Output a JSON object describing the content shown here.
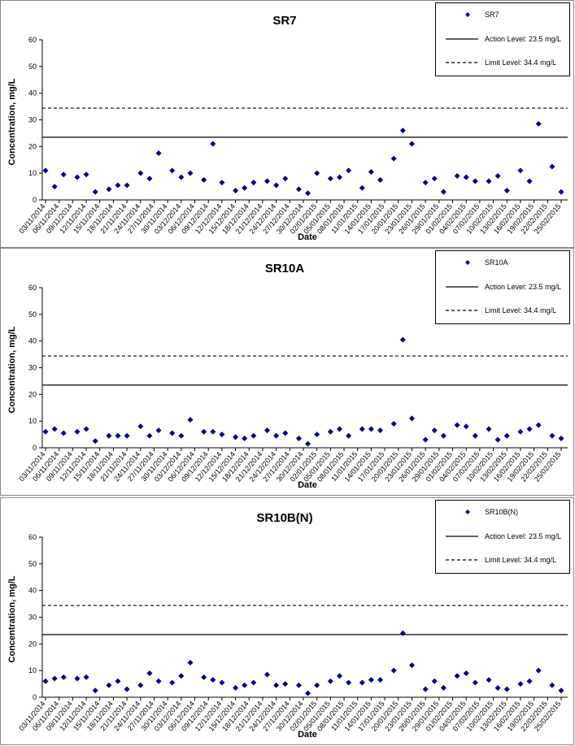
{
  "chart_data": [
    {
      "type": "scatter",
      "title": "SR7",
      "x_label": "Date",
      "y_label": "Concentration, mg/L",
      "series": [
        {
          "name": "SR7",
          "color": "#000080",
          "x": [
            "03/11/2014",
            "05/11/2014",
            "07/11/2014",
            "10/11/2014",
            "12/11/2014",
            "14/11/2014",
            "17/11/2014",
            "19/11/2014",
            "21/11/2014",
            "24/11/2014",
            "26/11/2014",
            "28/11/2014",
            "01/12/2014",
            "03/12/2014",
            "05/12/2014",
            "08/12/2014",
            "10/12/2014",
            "12/12/2014",
            "15/12/2014",
            "17/12/2014",
            "19/12/2014",
            "22/12/2014",
            "24/12/2014",
            "26/12/2014",
            "29/12/2014",
            "31/12/2014",
            "02/01/2015",
            "05/01/2015",
            "07/01/2015",
            "09/01/2015",
            "12/01/2015",
            "14/01/2015",
            "16/01/2015",
            "19/01/2015",
            "21/01/2015",
            "23/01/2015",
            "26/01/2015",
            "28/01/2015",
            "30/01/2015",
            "02/02/2015",
            "04/02/2015",
            "06/02/2015",
            "09/02/2015",
            "11/02/2015",
            "13/02/2015",
            "16/02/2015",
            "18/02/2015",
            "20/02/2015",
            "23/02/2015",
            "25/02/2015"
          ],
          "values": [
            11,
            5,
            9.5,
            8.5,
            9.5,
            3,
            4,
            5.5,
            5.5,
            10,
            8,
            17.5,
            11,
            8.5,
            10,
            7.5,
            21,
            6.5,
            3.5,
            4.5,
            6.5,
            7,
            5.5,
            8,
            4,
            2.5,
            10,
            8,
            8.5,
            11,
            4.5,
            10.5,
            7.5,
            15.5,
            26,
            21,
            6.5,
            8,
            3,
            9,
            8.5,
            7,
            7,
            9,
            3.5,
            11,
            7,
            28.5,
            12.5,
            3
          ]
        }
      ],
      "lines": [
        {
          "name": "Action Level: 23.5 mg/L",
          "value": 23.5,
          "style": "solid"
        },
        {
          "name": "Limit Level: 34.4 mg/L",
          "value": 34.4,
          "style": "dashed"
        }
      ],
      "xlim": [
        "03/11/2014",
        "25/02/2015"
      ],
      "xticks": [
        "03/11/2014",
        "06/11/2014",
        "09/11/2014",
        "12/11/2014",
        "15/11/2014",
        "18/11/2014",
        "21/11/2014",
        "24/11/2014",
        "27/11/2014",
        "30/11/2014",
        "03/12/2014",
        "06/12/2014",
        "09/12/2014",
        "12/12/2014",
        "15/12/2014",
        "18/12/2014",
        "21/12/2014",
        "24/12/2014",
        "27/12/2014",
        "30/12/2014",
        "02/01/2015",
        "05/01/2015",
        "08/01/2015",
        "11/01/2015",
        "14/01/2015",
        "17/01/2015",
        "20/01/2015",
        "23/01/2015",
        "26/01/2015",
        "29/01/2015",
        "01/02/2015",
        "04/02/2015",
        "07/02/2015",
        "10/02/2015",
        "13/02/2015",
        "16/02/2015",
        "19/02/2015",
        "22/02/2015",
        "25/02/2015"
      ],
      "ylim": [
        0,
        60
      ],
      "yticks": [
        0,
        10,
        20,
        30,
        40,
        50,
        60
      ]
    },
    {
      "type": "scatter",
      "title": "SR10A",
      "x_label": "Date",
      "y_label": "Concentration, mg/L",
      "series": [
        {
          "name": "SR10A",
          "color": "#000080",
          "x": [
            "03/11/2014",
            "05/11/2014",
            "07/11/2014",
            "10/11/2014",
            "12/11/2014",
            "14/11/2014",
            "17/11/2014",
            "19/11/2014",
            "21/11/2014",
            "24/11/2014",
            "26/11/2014",
            "28/11/2014",
            "01/12/2014",
            "03/12/2014",
            "05/12/2014",
            "08/12/2014",
            "10/12/2014",
            "12/12/2014",
            "15/12/2014",
            "17/12/2014",
            "19/12/2014",
            "22/12/2014",
            "24/12/2014",
            "26/12/2014",
            "29/12/2014",
            "31/12/2014",
            "02/01/2015",
            "05/01/2015",
            "07/01/2015",
            "09/01/2015",
            "12/01/2015",
            "14/01/2015",
            "16/01/2015",
            "19/01/2015",
            "21/01/2015",
            "23/01/2015",
            "26/01/2015",
            "28/01/2015",
            "30/01/2015",
            "02/02/2015",
            "04/02/2015",
            "06/02/2015",
            "09/02/2015",
            "11/02/2015",
            "13/02/2015",
            "16/02/2015",
            "18/02/2015",
            "20/02/2015",
            "23/02/2015",
            "25/02/2015"
          ],
          "values": [
            6,
            7,
            5.5,
            6,
            7,
            2.5,
            4.5,
            4.5,
            4.5,
            8,
            4.5,
            6.5,
            5.5,
            4.5,
            10.5,
            6,
            6,
            5,
            4,
            3.5,
            4.5,
            6.5,
            4.5,
            5.5,
            3.5,
            1.5,
            5,
            6,
            7,
            4.5,
            7,
            7,
            6.5,
            9,
            40.5,
            11,
            3,
            6.5,
            4.5,
            8.5,
            8,
            4.5,
            7,
            3,
            4.5,
            6,
            7,
            8.5,
            4.5,
            3.5
          ]
        }
      ],
      "lines": [
        {
          "name": "Action Level: 23.5 mg/L",
          "value": 23.5,
          "style": "solid"
        },
        {
          "name": "Limit Level: 34.4 mg/L",
          "value": 34.4,
          "style": "dashed"
        }
      ],
      "xlim": [
        "03/11/2014",
        "25/02/2015"
      ],
      "xticks": [
        "03/11/2014",
        "06/11/2014",
        "09/11/2014",
        "12/11/2014",
        "15/11/2014",
        "18/11/2014",
        "21/11/2014",
        "24/11/2014",
        "27/11/2014",
        "30/11/2014",
        "03/12/2014",
        "06/12/2014",
        "09/12/2014",
        "12/12/2014",
        "15/12/2014",
        "18/12/2014",
        "21/12/2014",
        "24/12/2014",
        "27/12/2014",
        "30/12/2014",
        "02/01/2015",
        "05/01/2015",
        "08/01/2015",
        "11/01/2015",
        "14/01/2015",
        "17/01/2015",
        "20/01/2015",
        "23/01/2015",
        "26/01/2015",
        "29/01/2015",
        "01/02/2015",
        "04/02/2015",
        "07/02/2015",
        "10/02/2015",
        "13/02/2015",
        "16/02/2015",
        "19/02/2015",
        "22/02/2015",
        "25/02/2015"
      ],
      "ylim": [
        0,
        60
      ],
      "yticks": [
        0,
        10,
        20,
        30,
        40,
        50,
        60
      ]
    },
    {
      "type": "scatter",
      "title": "SR10B(N)",
      "x_label": "Date",
      "y_label": "Concentration, mg/L",
      "series": [
        {
          "name": "SR10B(N)",
          "color": "#000080",
          "x": [
            "03/11/2014",
            "05/11/2014",
            "07/11/2014",
            "10/11/2014",
            "12/11/2014",
            "14/11/2014",
            "17/11/2014",
            "19/11/2014",
            "21/11/2014",
            "24/11/2014",
            "26/11/2014",
            "28/11/2014",
            "01/12/2014",
            "03/12/2014",
            "05/12/2014",
            "08/12/2014",
            "10/12/2014",
            "12/12/2014",
            "15/12/2014",
            "17/12/2014",
            "19/12/2014",
            "22/12/2014",
            "24/12/2014",
            "26/12/2014",
            "29/12/2014",
            "31/12/2014",
            "02/01/2015",
            "05/01/2015",
            "07/01/2015",
            "09/01/2015",
            "12/01/2015",
            "14/01/2015",
            "16/01/2015",
            "19/01/2015",
            "21/01/2015",
            "23/01/2015",
            "26/01/2015",
            "28/01/2015",
            "30/01/2015",
            "02/02/2015",
            "04/02/2015",
            "06/02/2015",
            "09/02/2015",
            "11/02/2015",
            "13/02/2015",
            "16/02/2015",
            "18/02/2015",
            "20/02/2015",
            "23/02/2015",
            "25/02/2015"
          ],
          "values": [
            6,
            7,
            7.5,
            7,
            7.5,
            2.5,
            4.5,
            6,
            3,
            4.5,
            9,
            6,
            5.5,
            8,
            13,
            7.5,
            6.5,
            5.5,
            3.5,
            4.5,
            5.5,
            8.5,
            4.5,
            5,
            4.5,
            1.5,
            4.5,
            6,
            8,
            5.5,
            5.5,
            6.5,
            6.5,
            10,
            24,
            12,
            3,
            6,
            3.5,
            8,
            9,
            5.5,
            6.5,
            3.5,
            3,
            5,
            6,
            10,
            4.5,
            2.5
          ]
        }
      ],
      "lines": [
        {
          "name": "Action Level: 23.5 mg/L",
          "value": 23.5,
          "style": "solid"
        },
        {
          "name": "Limit Level: 34.4 mg/L",
          "value": 34.4,
          "style": "dashed"
        }
      ],
      "xlim": [
        "03/11/2014",
        "25/02/2015"
      ],
      "xticks": [
        "03/11/2014",
        "06/11/2014",
        "09/11/2014",
        "12/11/2014",
        "15/11/2014",
        "18/11/2014",
        "21/11/2014",
        "24/11/2014",
        "27/11/2014",
        "30/11/2014",
        "03/12/2014",
        "06/12/2014",
        "09/12/2014",
        "12/12/2014",
        "15/12/2014",
        "18/12/2014",
        "21/12/2014",
        "24/12/2014",
        "27/12/2014",
        "30/12/2014",
        "02/01/2015",
        "05/01/2015",
        "08/01/2015",
        "11/01/2015",
        "14/01/2015",
        "17/01/2015",
        "20/01/2015",
        "23/01/2015",
        "26/01/2015",
        "29/01/2015",
        "01/02/2015",
        "04/02/2015",
        "07/02/2015",
        "10/02/2015",
        "13/02/2015",
        "16/02/2015",
        "19/02/2015",
        "22/02/2015",
        "25/02/2015"
      ],
      "ylim": [
        0,
        60
      ],
      "yticks": [
        0,
        10,
        20,
        30,
        40,
        50,
        60
      ]
    }
  ]
}
